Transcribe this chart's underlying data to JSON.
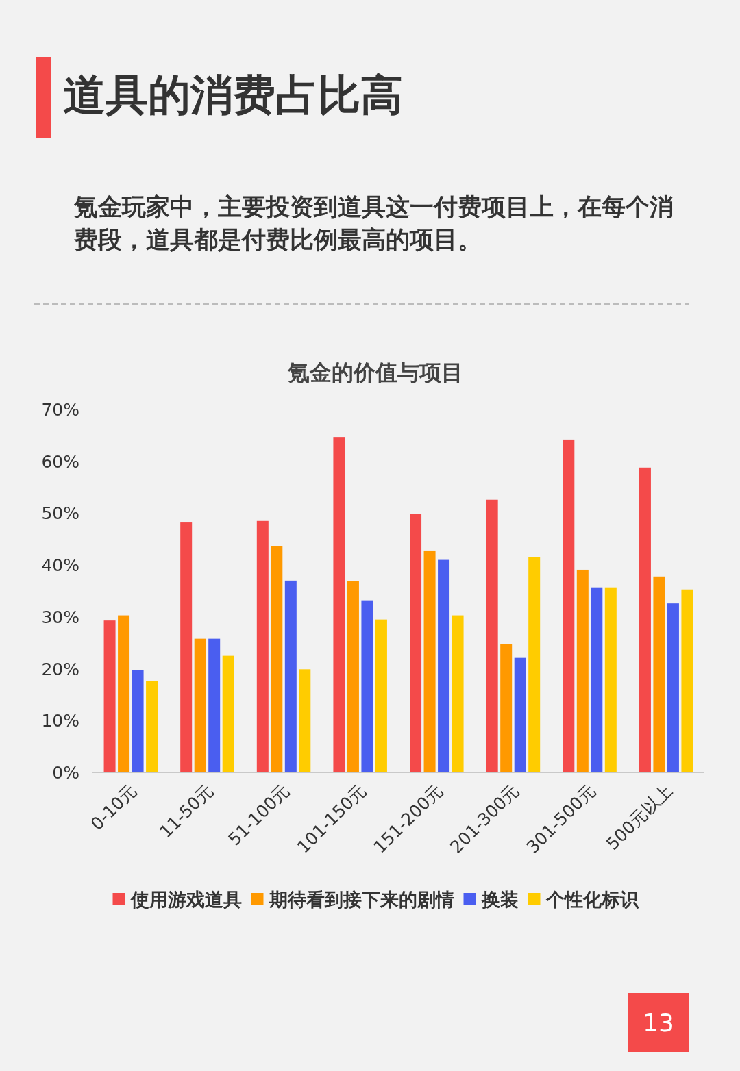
{
  "chart_data": {
    "type": "bar",
    "title": "氪金的价值与项目",
    "annotations": [
      "道具的消费占比高",
      "氪金玩家中，主要投资到道具这一付费项目上，在每个消费段，道具都是付费比例最高的项目。",
      "13"
    ],
    "categories": [
      "0-10元",
      "11-50元",
      "51-100元",
      "101-150元",
      "151-200元",
      "201-300元",
      "301-500元",
      "500元以上"
    ],
    "series": [
      {
        "name": "使用游戏道具",
        "color": "#f44a4a",
        "values": [
          29.3,
          48.2,
          48.5,
          64.7,
          49.9,
          52.6,
          64.2,
          58.8
        ]
      },
      {
        "name": "期待看到接下来的剧情",
        "color": "#ff9900",
        "values": [
          30.3,
          25.8,
          43.7,
          36.9,
          42.8,
          24.8,
          39.1,
          37.8
        ]
      },
      {
        "name": "换装",
        "color": "#4a5ef0",
        "values": [
          19.7,
          25.8,
          37.0,
          33.2,
          41.0,
          22.1,
          35.7,
          32.6
        ]
      },
      {
        "name": "个性化标识",
        "color": "#ffcc00",
        "values": [
          17.7,
          22.5,
          19.9,
          29.5,
          30.3,
          41.5,
          35.7,
          35.3
        ]
      }
    ],
    "ylim": [
      0,
      70
    ],
    "yticks": [
      {
        "value": 0,
        "label": "0%"
      },
      {
        "value": 10,
        "label": "10%"
      },
      {
        "value": 20,
        "label": "20%"
      },
      {
        "value": 30,
        "label": "30%"
      },
      {
        "value": 40,
        "label": "40%"
      },
      {
        "value": 50,
        "label": "50%"
      },
      {
        "value": 60,
        "label": "60%"
      },
      {
        "value": 70,
        "label": "70%"
      }
    ],
    "grid": false,
    "legend": "bottom"
  }
}
